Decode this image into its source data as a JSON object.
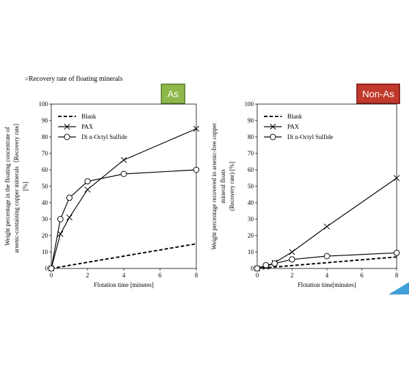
{
  "header": {
    "caption": "Recovery rate of floating minerals"
  },
  "badges": {
    "as": {
      "label": "As",
      "color": "#8db84a"
    },
    "nonas": {
      "label": "Non-As",
      "color": "#c0392b"
    }
  },
  "chart_data": [
    {
      "type": "line",
      "badge": "As",
      "xlabel": "Flotation time [minutes]",
      "ylabel": "Weight percentage in the floating concentrate of arsenic-containing copper minerals（Recovery rate） [%]",
      "xlim": [
        0,
        8
      ],
      "ylim": [
        0,
        100
      ],
      "xticks": [
        0,
        2,
        4,
        6,
        8
      ],
      "yticks": [
        0,
        10,
        20,
        30,
        40,
        50,
        60,
        70,
        80,
        90,
        100
      ],
      "legend_position": "top-left",
      "series": [
        {
          "name": "Blank",
          "style": "dashed",
          "marker": "none",
          "x": [
            0,
            8
          ],
          "y": [
            0,
            15
          ]
        },
        {
          "name": "PAX",
          "style": "solid",
          "marker": "x",
          "x": [
            0,
            0.5,
            1,
            2,
            4,
            8
          ],
          "y": [
            0,
            21,
            31,
            48,
            66,
            85
          ]
        },
        {
          "name": "Di n-Octyl Sulfide",
          "style": "solid",
          "marker": "circle",
          "x": [
            0,
            0.5,
            1,
            2,
            4,
            8
          ],
          "y": [
            0,
            30,
            43,
            53,
            57.5,
            60
          ]
        }
      ]
    },
    {
      "type": "line",
      "badge": "Non-As",
      "xlabel": "Flotation time[minutes]",
      "ylabel": "Weight percentage recovered in arsenic-free copper mineral floats (Recovery rate) [%]",
      "xlim": [
        0,
        8
      ],
      "ylim": [
        0,
        100
      ],
      "xticks": [
        0,
        2,
        4,
        6,
        8
      ],
      "yticks": [
        0,
        10,
        20,
        30,
        40,
        50,
        60,
        70,
        80,
        90,
        100
      ],
      "legend_position": "top-left",
      "series": [
        {
          "name": "Blank",
          "style": "dashed",
          "marker": "none",
          "x": [
            0,
            8
          ],
          "y": [
            0,
            7
          ]
        },
        {
          "name": "PAX",
          "style": "solid",
          "marker": "x",
          "x": [
            0,
            0.5,
            1,
            2,
            4,
            8
          ],
          "y": [
            0,
            1,
            3.5,
            10,
            25.5,
            55
          ]
        },
        {
          "name": "Di n-Octyl Sulfide",
          "style": "solid",
          "marker": "circle",
          "x": [
            0,
            0.5,
            1,
            2,
            4,
            8
          ],
          "y": [
            0,
            2,
            3,
            5.5,
            7.5,
            9.5
          ]
        }
      ]
    }
  ]
}
